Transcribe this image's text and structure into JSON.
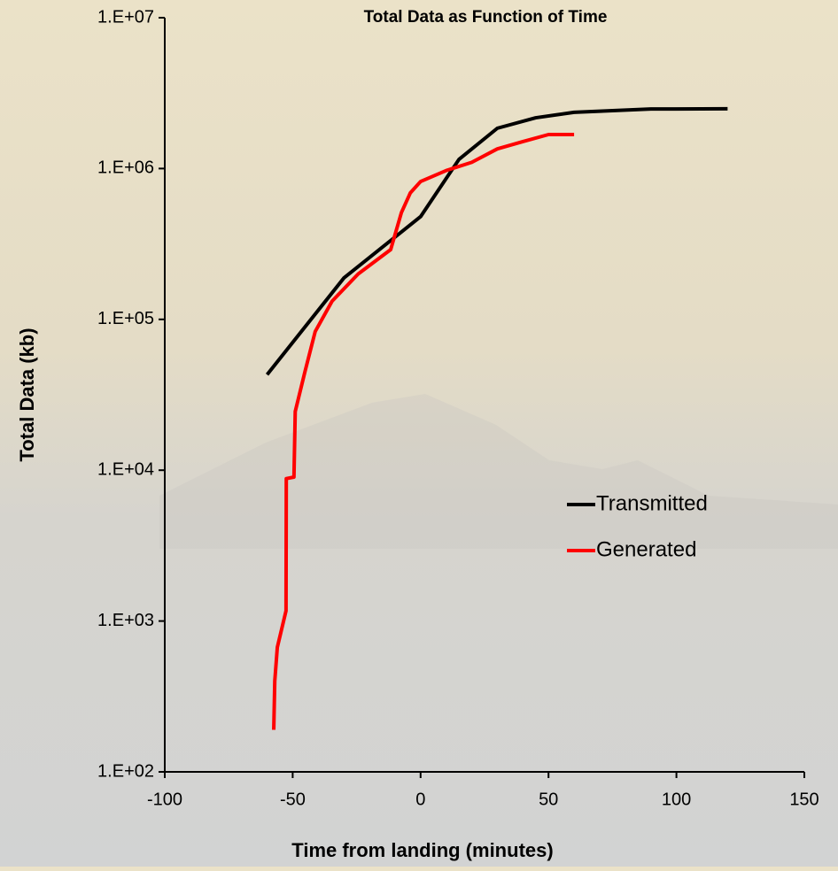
{
  "chart_data": {
    "type": "line",
    "title": "Total Data as Function of Time",
    "x_label": "Time from landing (minutes)",
    "y_label": "Total Data (kb)",
    "log_y": true,
    "grid": false,
    "legend": "right",
    "xlim": [
      -100,
      150
    ],
    "xticks": [
      -100,
      -50,
      0,
      50,
      100,
      150
    ],
    "ylim": [
      100,
      10000000
    ],
    "yticks": [
      {
        "value": 100,
        "label": "1.E+02"
      },
      {
        "value": 1000,
        "label": "1.E+03"
      },
      {
        "value": 10000,
        "label": "1.E+04"
      },
      {
        "value": 100000,
        "label": "1.E+05"
      },
      {
        "value": 1000000,
        "label": "1.E+06"
      },
      {
        "value": 10000000,
        "label": "1.E+07"
      }
    ],
    "series": [
      {
        "name": "Transmitted",
        "color": "#000000",
        "x": [
          -60,
          -30,
          0,
          15,
          30,
          45,
          60,
          90,
          120
        ],
        "values": [
          43000,
          188000,
          480000,
          1150000,
          1850000,
          2170000,
          2360000,
          2480000,
          2490000
        ]
      },
      {
        "name": "Generated",
        "color": "#ff0000",
        "x": [
          -57.4,
          -57,
          -56,
          -52.6,
          -52.5,
          -49.5,
          -49,
          -45.2,
          -41.2,
          -34.6,
          -24.4,
          -11.7,
          -7.5,
          -4,
          0,
          10,
          20,
          30,
          40,
          50,
          60
        ],
        "values": [
          190,
          400,
          670,
          1170,
          8800,
          9000,
          24500,
          45000,
          83000,
          132000,
          200000,
          290000,
          510000,
          690000,
          820000,
          970000,
          1100000,
          1350000,
          1510000,
          1680000,
          1680000
        ]
      }
    ]
  }
}
